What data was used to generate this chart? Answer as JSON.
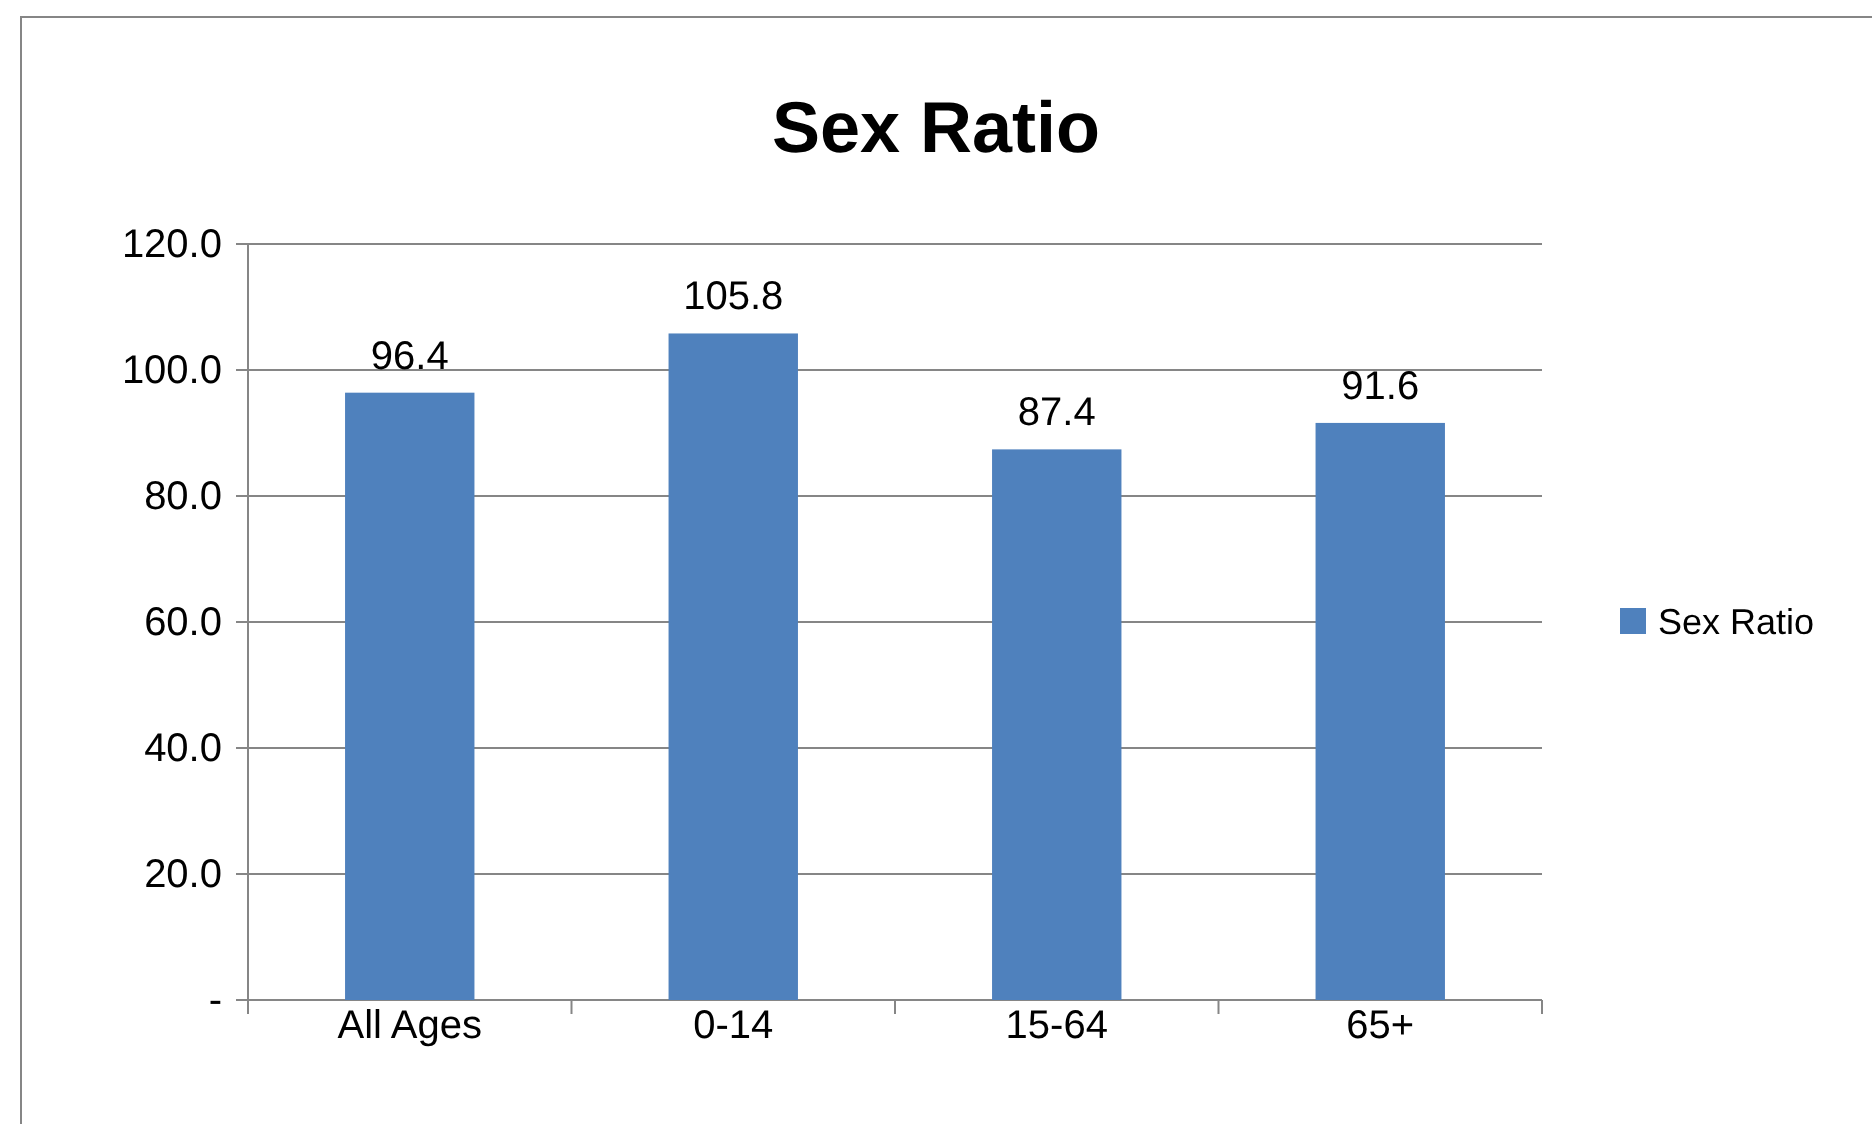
{
  "chart_data": {
    "type": "bar",
    "title": "Sex Ratio",
    "categories": [
      "All Ages",
      "0-14",
      "15-64",
      "65+"
    ],
    "series": [
      {
        "name": "Sex Ratio",
        "color": "#4f81bd",
        "values": [
          96.4,
          105.8,
          87.4,
          91.6
        ]
      }
    ],
    "ylim": [
      0,
      120
    ],
    "yticks": [
      {
        "value": 0,
        "label": "-"
      },
      {
        "value": 20,
        "label": "20.0"
      },
      {
        "value": 40,
        "label": "40.0"
      },
      {
        "value": 60,
        "label": "60.0"
      },
      {
        "value": 80,
        "label": "80.0"
      },
      {
        "value": 100,
        "label": "100.0"
      },
      {
        "value": 120,
        "label": "120.0"
      }
    ],
    "grid": "y",
    "legend": "right",
    "data_labels": true
  }
}
